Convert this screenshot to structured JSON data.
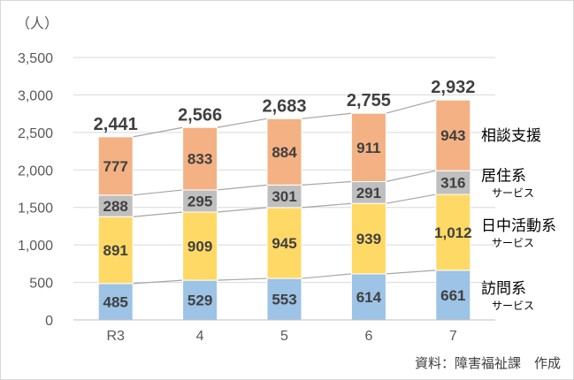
{
  "chart_data": {
    "type": "bar",
    "stacked": true,
    "unit_label": "（人）",
    "categories": [
      "R3",
      "4",
      "5",
      "6",
      "7"
    ],
    "y_ticks": [
      "0",
      "500",
      "1,000",
      "1,500",
      "2,000",
      "2,500",
      "3,000",
      "3,500"
    ],
    "ylim": [
      0,
      3500
    ],
    "grid": true,
    "series": [
      {
        "name": "訪問系",
        "name_sub": "サービス",
        "color": "#9dc3e6",
        "values": [
          485,
          529,
          553,
          614,
          661
        ],
        "labels": [
          "485",
          "529",
          "553",
          "614",
          "661"
        ]
      },
      {
        "name": "日中活動系",
        "name_sub": "サービス",
        "color": "#ffd966",
        "values": [
          891,
          909,
          945,
          939,
          1012
        ],
        "labels": [
          "891",
          "909",
          "945",
          "939",
          "1,012"
        ]
      },
      {
        "name": "居住系",
        "name_sub": "サービス",
        "color": "#bfbfbf",
        "values": [
          288,
          295,
          301,
          291,
          316
        ],
        "labels": [
          "288",
          "295",
          "301",
          "291",
          "316"
        ]
      },
      {
        "name": "相談支援",
        "name_sub": "",
        "color": "#f4b183",
        "values": [
          777,
          833,
          884,
          911,
          943
        ],
        "labels": [
          "777",
          "833",
          "884",
          "911",
          "943"
        ]
      }
    ],
    "totals": [
      "2,441",
      "2,566",
      "2,683",
      "2,755",
      "2,932"
    ],
    "source": "資料：障害福祉課　作成"
  }
}
